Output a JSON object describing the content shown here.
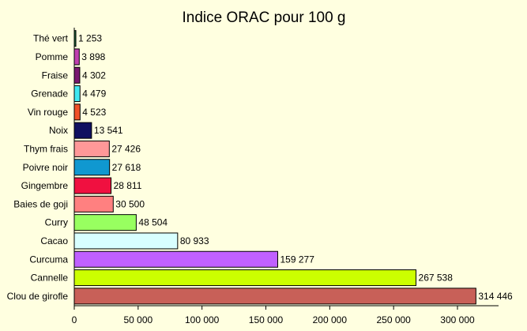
{
  "chart_data": {
    "type": "bar",
    "orientation": "horizontal",
    "title": "Indice ORAC pour 100 g",
    "xlabel": "",
    "ylabel": "",
    "xlim": [
      0,
      340000
    ],
    "grid": false,
    "legend": "none",
    "categories": [
      "Thé vert",
      "Pomme",
      "Fraise",
      "Grenade",
      "Vin rouge",
      "Noix",
      "Thym frais",
      "Poivre noir",
      "Gingembre",
      "Baies de goji",
      "Curry",
      "Cacao",
      "Curcuma",
      "Cannelle",
      "Clou de girofle"
    ],
    "values": [
      1253,
      3898,
      4302,
      4479,
      4523,
      13541,
      27426,
      27618,
      28811,
      30500,
      48504,
      80933,
      159277,
      267538,
      314446
    ],
    "value_labels": [
      "1 253",
      "3 898",
      "4 302",
      "4 479",
      "4 523",
      "13 541",
      "27 426",
      "27 618",
      "28 811",
      "30 500",
      "48 504",
      "80 933",
      "159 277",
      "267 538",
      "314 446"
    ],
    "colors": [
      "#1a6b3a",
      "#c040b0",
      "#7a1870",
      "#40e8f0",
      "#f05028",
      "#101060",
      "#ff9898",
      "#1098d0",
      "#f01040",
      "#ff8080",
      "#98ff60",
      "#d8ffff",
      "#c060ff",
      "#ccff00",
      "#c86058"
    ],
    "xticks": [
      0,
      50000,
      100000,
      150000,
      200000,
      250000,
      300000
    ],
    "xtick_labels": [
      "0",
      "50 000",
      "100 000",
      "150 000",
      "200 000",
      "250 000",
      "300 000"
    ]
  }
}
